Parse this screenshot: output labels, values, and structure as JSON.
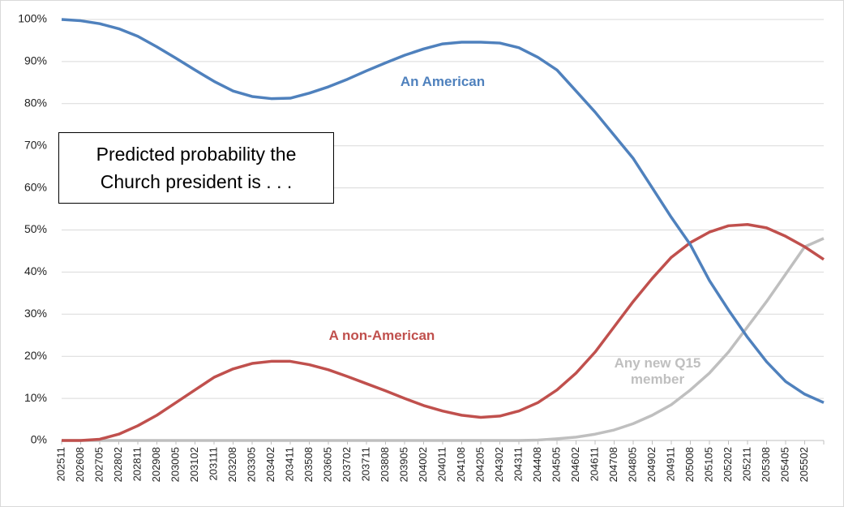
{
  "chart_data": {
    "type": "line",
    "title": "Predicted probability the Church president is . . .",
    "categories": [
      "202511",
      "202608",
      "202705",
      "202802",
      "202811",
      "202908",
      "203005",
      "203102",
      "203111",
      "203208",
      "203305",
      "203402",
      "203411",
      "203508",
      "203605",
      "203702",
      "203711",
      "203808",
      "203905",
      "204002",
      "204011",
      "204108",
      "204205",
      "204302",
      "204311",
      "204408",
      "204505",
      "204602",
      "204611",
      "204708",
      "204805",
      "204902",
      "204911",
      "205008",
      "205105",
      "205202",
      "205211",
      "205308",
      "205405",
      "205502",
      null
    ],
    "series": [
      {
        "name": "An American",
        "color": "#4f81bd",
        "values": [
          100,
          99.7,
          99,
          97.8,
          96,
          93.5,
          90.8,
          88,
          85.3,
          83,
          81.7,
          81.2,
          81.3,
          82.5,
          84,
          85.8,
          87.8,
          89.7,
          91.5,
          93,
          94.2,
          94.6,
          94.6,
          94.4,
          93.3,
          91,
          88,
          83,
          78,
          72.5,
          67,
          60,
          53,
          46.5,
          38,
          31,
          24.5,
          18.7,
          14,
          11,
          9
        ]
      },
      {
        "name": "A non-American",
        "color": "#c0504d",
        "values": [
          0,
          0,
          0.3,
          1.5,
          3.5,
          6,
          9,
          12,
          15,
          17,
          18.3,
          18.8,
          18.8,
          18,
          16.8,
          15.2,
          13.5,
          11.8,
          10,
          8.3,
          7,
          6,
          5.5,
          5.8,
          7,
          9,
          12,
          16,
          21,
          27,
          33,
          38.5,
          43.5,
          47,
          49.5,
          51,
          51.3,
          50.5,
          48.5,
          46,
          43
        ]
      },
      {
        "name": "Any new Q15 member",
        "color": "#bfbfbf",
        "values": [
          0,
          0,
          0,
          0,
          0,
          0,
          0,
          0,
          0,
          0,
          0,
          0,
          0,
          0,
          0,
          0,
          0,
          0,
          0,
          0,
          0,
          0,
          0,
          0,
          0,
          0.1,
          0.4,
          0.8,
          1.5,
          2.5,
          4,
          6,
          8.5,
          12,
          16,
          21,
          27,
          33,
          39.5,
          46,
          48
        ]
      }
    ],
    "ylim": [
      0,
      100
    ],
    "yticks": [
      {
        "value": 0,
        "label": "0%"
      },
      {
        "value": 10,
        "label": "10%"
      },
      {
        "value": 20,
        "label": "20%"
      },
      {
        "value": 30,
        "label": "30%"
      },
      {
        "value": 40,
        "label": "40%"
      },
      {
        "value": 50,
        "label": "50%"
      },
      {
        "value": 60,
        "label": "60%"
      },
      {
        "value": 70,
        "label": "70%"
      },
      {
        "value": 80,
        "label": "80%"
      },
      {
        "value": 90,
        "label": "90%"
      },
      {
        "value": 100,
        "label": "100%"
      }
    ],
    "grid": true
  }
}
